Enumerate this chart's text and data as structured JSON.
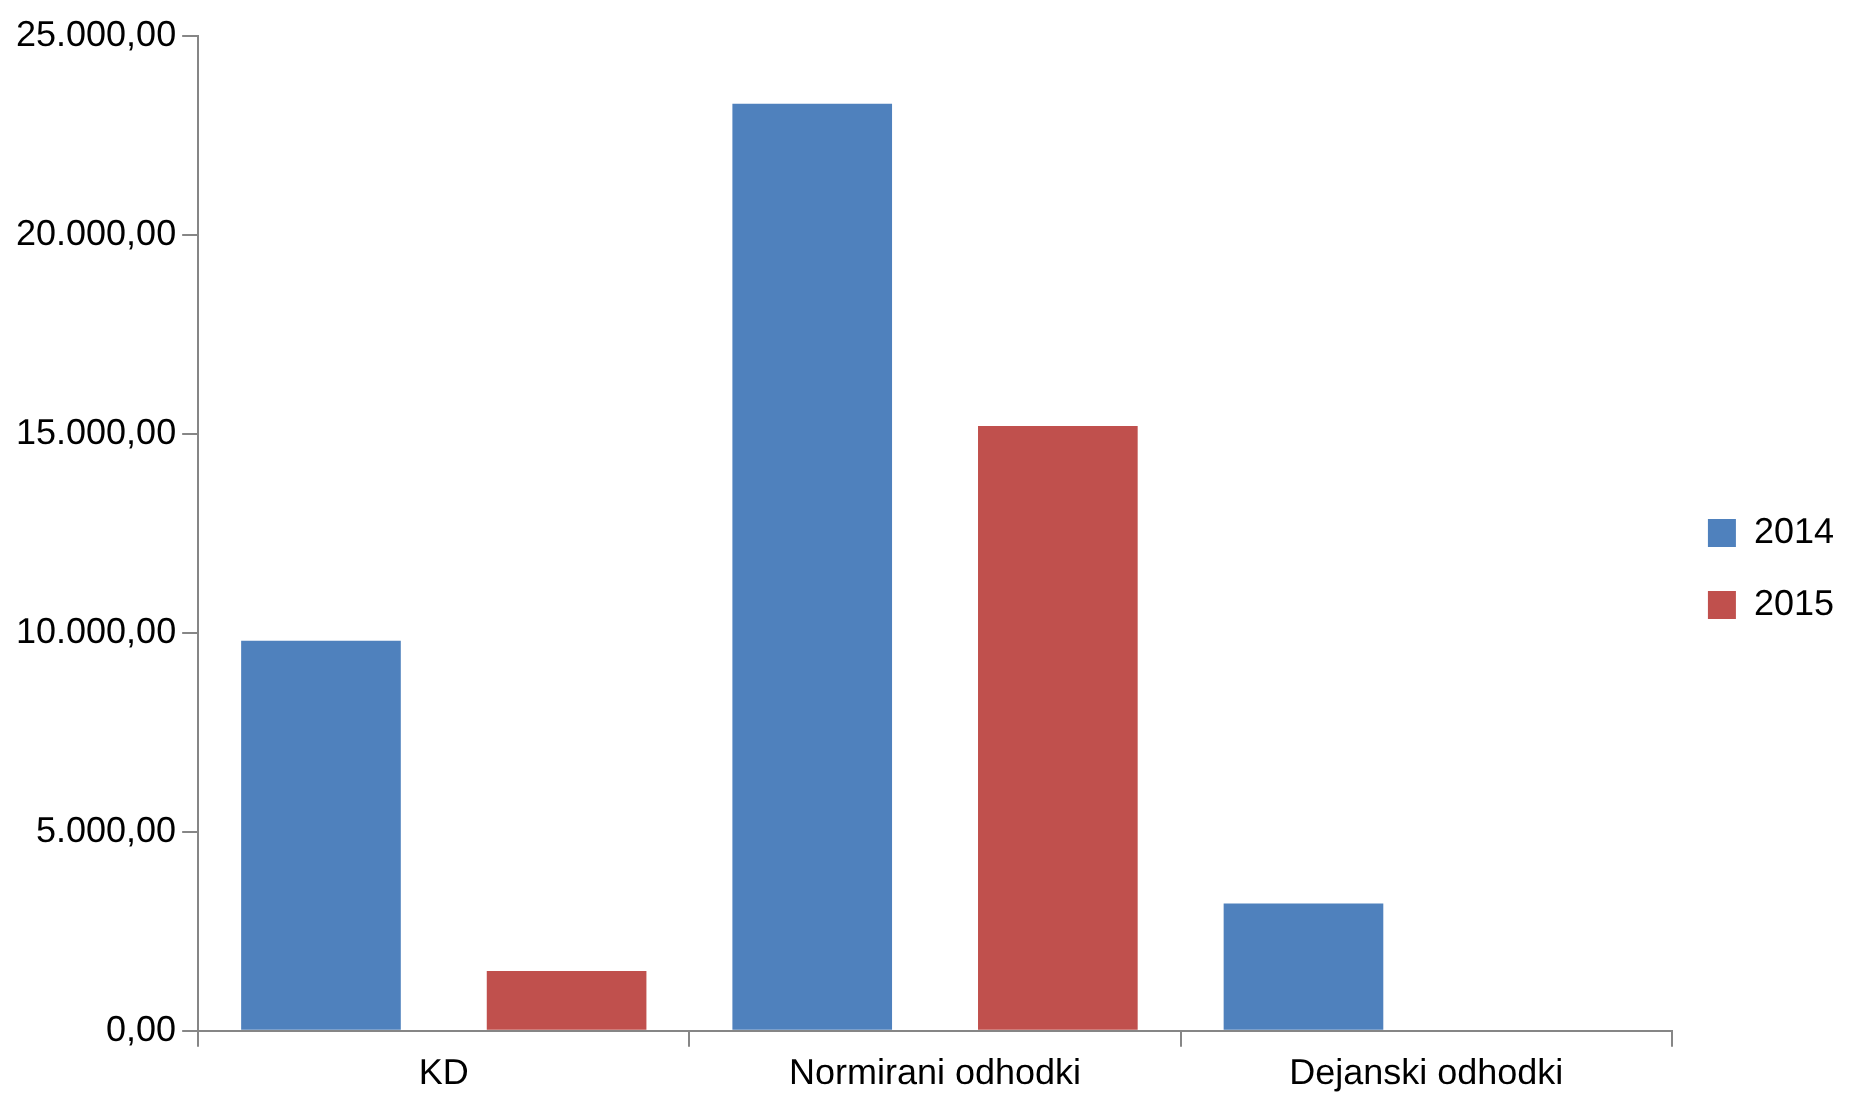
{
  "chart_data": {
    "type": "bar",
    "categories": [
      "KD",
      "Normirani odhodki",
      "Dejanski odhodki"
    ],
    "series": [
      {
        "name": "2014",
        "color": "#4f81bd",
        "values": [
          9800,
          23300,
          3200
        ]
      },
      {
        "name": "2015",
        "color": "#c0504d",
        "values": [
          1500,
          15200,
          0
        ]
      }
    ],
    "ylim": [
      0,
      25000
    ],
    "yticks": [
      {
        "value": 0,
        "label": "0,00"
      },
      {
        "value": 5000,
        "label": "5.000,00"
      },
      {
        "value": 10000,
        "label": "10.000,00"
      },
      {
        "value": 15000,
        "label": "15.000,00"
      },
      {
        "value": 20000,
        "label": "20.000,00"
      },
      {
        "value": 25000,
        "label": "25.000,00"
      }
    ],
    "grid": false,
    "legend": "right"
  }
}
